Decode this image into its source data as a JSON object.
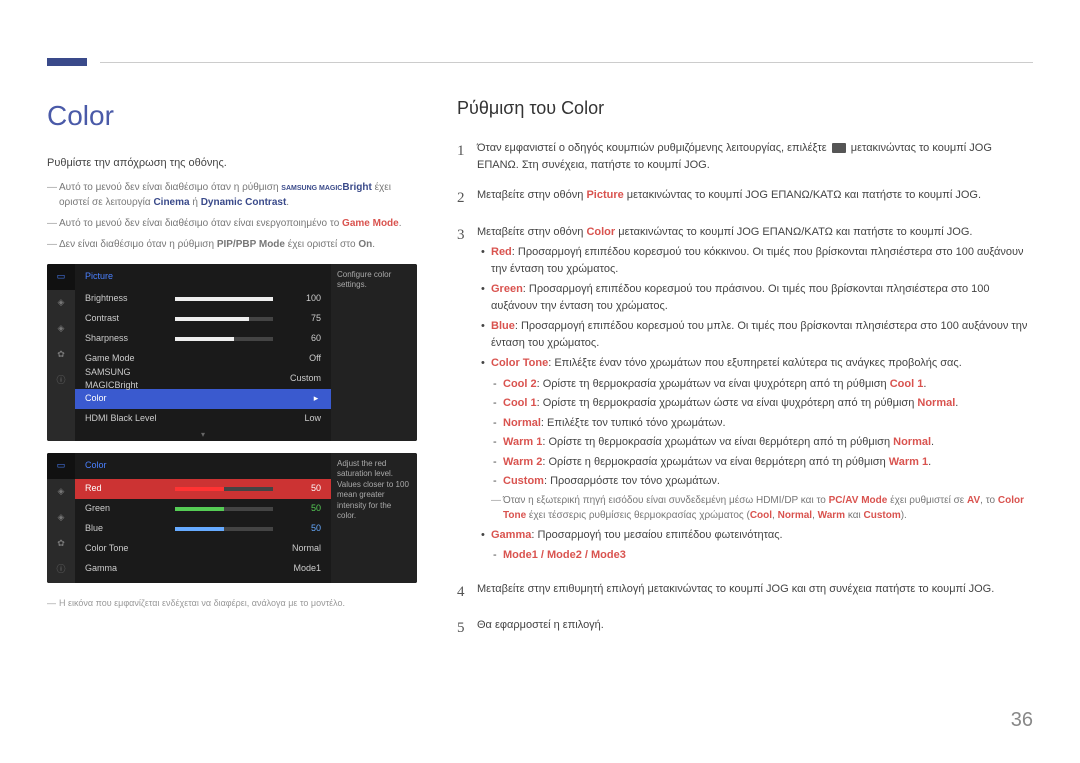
{
  "page": {
    "number": "36",
    "heading_left": "Color",
    "heading_right": "Ρύθμιση του Color",
    "intro": "Ρυθμίστε την απόχρωση της οθόνης.",
    "footnote": "Η εικόνα που εμφανίζεται ενδέχεται να διαφέρει, ανάλογα με το μοντέλο."
  },
  "notes": {
    "n1_pre": "Αυτό το μενού δεν είναι διαθέσιμο όταν η ρύθμιση ",
    "n1_brand": "SAMSUNG MAGIC",
    "n1_bright": "Bright",
    "n1_mid": " έχει οριστεί σε λειτουργία ",
    "n1_cinema": "Cinema",
    "n1_or": " ή ",
    "n1_dc": "Dynamic Contrast",
    "n2_pre": "Αυτό το μενού δεν είναι διαθέσιμο όταν είναι ενεργοποιημένο το ",
    "n2_gm": "Game Mode",
    "n3_pre": "Δεν είναι διαθέσιμο όταν η ρύθμιση ",
    "n3_pip": "PIP/PBP Mode",
    "n3_mid": " έχει οριστεί στο ",
    "n3_on": "On"
  },
  "osd1": {
    "title": "Picture",
    "tip": "Configure color settings.",
    "rows": [
      {
        "label": "Brightness",
        "val": "100",
        "fill": 100,
        "color": "#eee"
      },
      {
        "label": "Contrast",
        "val": "75",
        "fill": 75,
        "color": "#eee"
      },
      {
        "label": "Sharpness",
        "val": "60",
        "fill": 60,
        "color": "#eee"
      },
      {
        "label": "Game Mode",
        "val": "Off"
      },
      {
        "label": "SAMSUNG MAGICBright",
        "val": "Custom"
      },
      {
        "label": "Color",
        "val": "",
        "selected": true
      },
      {
        "label": "HDMI Black Level",
        "val": "Low"
      }
    ]
  },
  "osd2": {
    "title": "Color",
    "tip": "Adjust the red saturation level. Values closer to 100 mean greater intensity for the color.",
    "rows": [
      {
        "label": "Red",
        "val": "50",
        "fill": 50,
        "color": "#f33",
        "selected": true
      },
      {
        "label": "Green",
        "val": "50",
        "fill": 50,
        "color": "#5c5",
        "valclass": "green50"
      },
      {
        "label": "Blue",
        "val": "50",
        "fill": 50,
        "color": "#6af",
        "valclass": "blue50"
      },
      {
        "label": "Color Tone",
        "val": "Normal"
      },
      {
        "label": "Gamma",
        "val": "Mode1"
      }
    ]
  },
  "steps": {
    "s1a": "Όταν εμφανιστεί ο οδηγός κουμπιών ρυθμιζόμενης λειτουργίας, επιλέξτε ",
    "s1b": " μετακινώντας το κουμπί JOG ΕΠΑΝΩ. Στη συνέχεια, πατήστε το κουμπί JOG.",
    "s2a": "Μεταβείτε στην οθόνη ",
    "s2p": "Picture",
    "s2b": " μετακινώντας το κουμπί JOG ΕΠΑΝΩ/ΚΑΤΩ και πατήστε το κουμπί JOG.",
    "s3a": "Μεταβείτε στην οθόνη ",
    "s3c": "Color",
    "s3b": " μετακινώντας το κουμπί JOG ΕΠΑΝΩ/ΚΑΤΩ και πατήστε το κουμπί JOG.",
    "s4": "Μεταβείτε στην επιθυμητή επιλογή μετακινώντας το κουμπί JOG και στη συνέχεια πατήστε το κουμπί JOG.",
    "s5": "Θα εφαρμοστεί η επιλογή."
  },
  "bul": {
    "red_k": "Red",
    "red": ": Προσαρμογή επιπέδου κορεσμού του κόκκινου. Οι τιμές που βρίσκονται πλησιέστερα στο 100 αυξάνουν την ένταση του χρώματος.",
    "green_k": "Green",
    "green": ": Προσαρμογή επιπέδου κορεσμού του πράσινου. Οι τιμές που βρίσκονται πλησιέστερα στο 100 αυξάνουν την ένταση του χρώματος.",
    "blue_k": "Blue",
    "blue": ": Προσαρμογή επιπέδου κορεσμού του μπλε. Οι τιμές που βρίσκονται πλησιέστερα στο 100 αυξάνουν την ένταση του χρώματος.",
    "ct_k": "Color Tone",
    "ct": ": Επιλέξτε έναν τόνο χρωμάτων που εξυπηρετεί καλύτερα τις ανάγκες προβολής σας.",
    "cool2_k": "Cool 2",
    "cool2": ": Ορίστε τη θερμοκρασία χρωμάτων να είναι ψυχρότερη από τη ρύθμιση ",
    "cool1r": "Cool 1",
    "cool1_k": "Cool 1",
    "cool1": ": Ορίστε τη θερμοκρασία χρωμάτων ώστε να είναι ψυχρότερη από τη ρύθμιση ",
    "normalr": "Normal",
    "normal_k": "Normal",
    "normal": ": Επιλέξτε τον τυπικό τόνο χρωμάτων.",
    "warm1_k": "Warm 1",
    "warm1": ": Ορίστε τη θερμοκρασία χρωμάτων να είναι θερμότερη από τη ρύθμιση ",
    "warm2_k": "Warm 2",
    "warm2": ": Ορίστε η θερμοκρασία χρωμάτων να είναι θερμότερη από τη ρύθμιση ",
    "warm1r": "Warm 1",
    "custom_k": "Custom",
    "custom": ": Προσαρμόστε τον τόνο χρωμάτων.",
    "pcav1": "Όταν η εξωτερική πηγή εισόδου είναι συνδεδεμένη μέσω HDMI/DP και το ",
    "pcav_k": "PC/AV Mode",
    "pcav2": " έχει ρυθμιστεί σε ",
    "av_k": "AV",
    "pcav3": ", το ",
    "ctone_k": "Color Tone",
    "pcav4": " έχει τέσσερις ρυθμίσεις θερμοκρασίας χρώματος (",
    "cool_k": "Cool",
    "cm": ", ",
    "normal_k2": "Normal",
    "warm_k": "Warm",
    "and": " και ",
    "custom_k2": "Custom",
    "pcav5": ").",
    "gamma_k": "Gamma",
    "gamma": ": Προσαρμογή του μεσαίου επιπέδου φωτεινότητας.",
    "modes": "Mode1 / Mode2 / Mode3"
  }
}
